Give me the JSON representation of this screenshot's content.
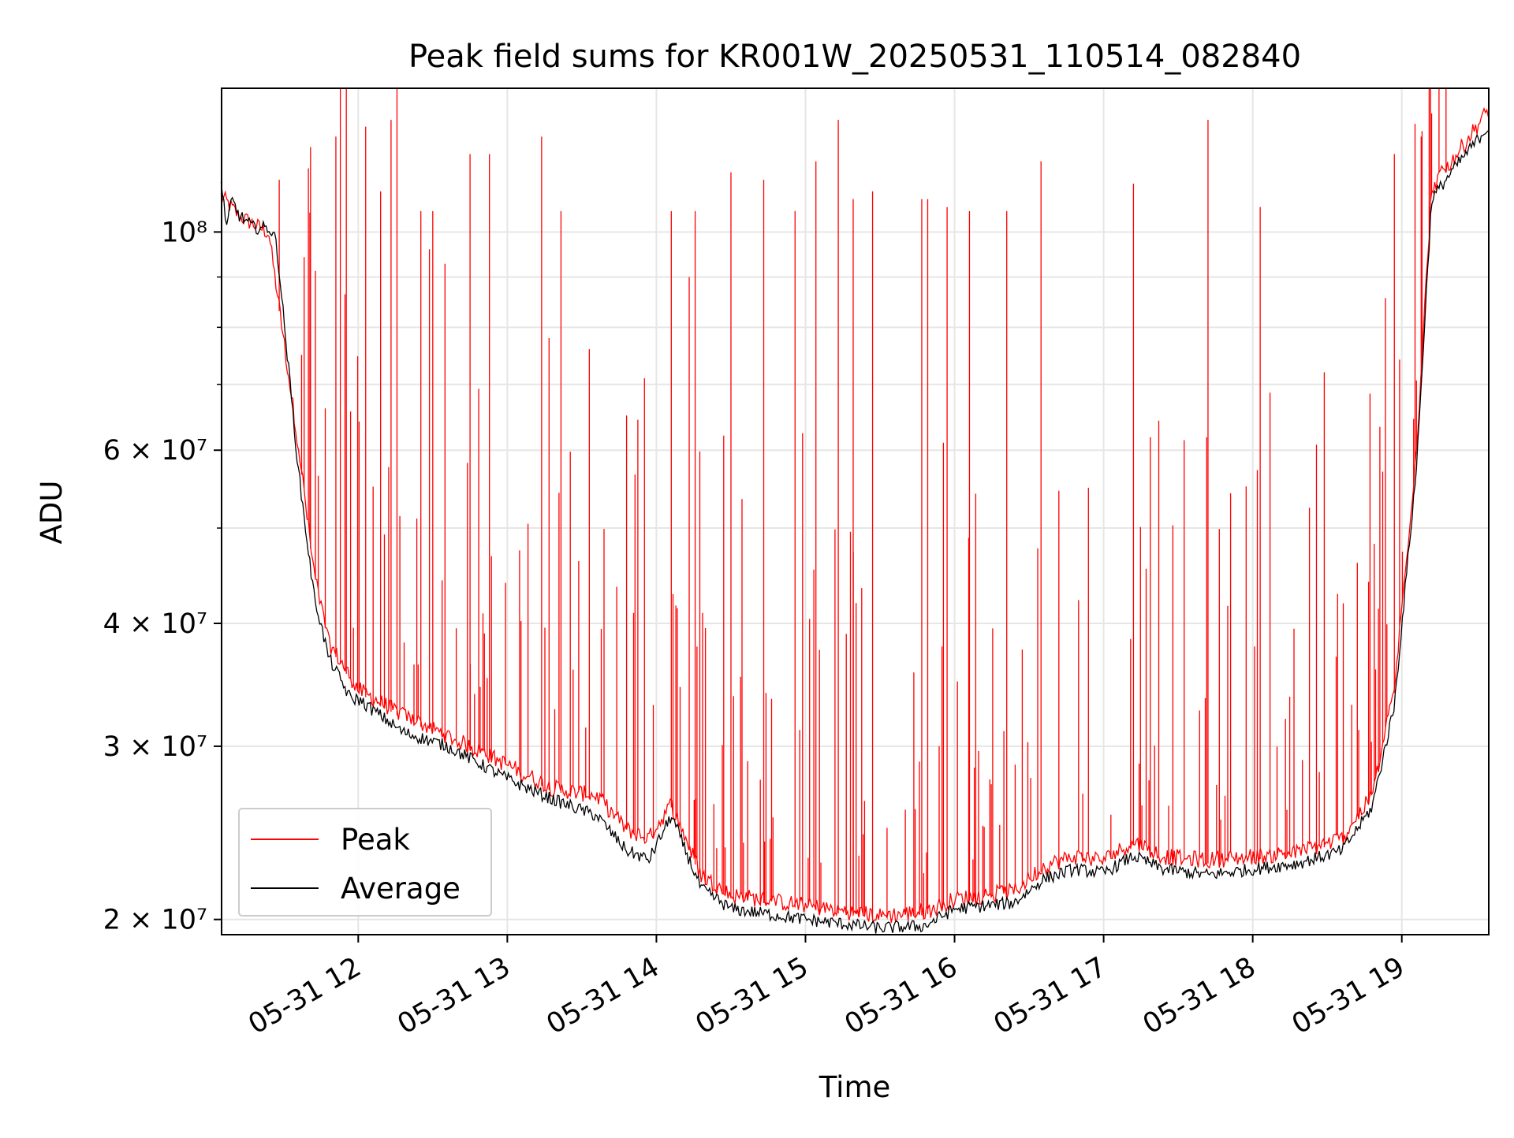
{
  "chart_data": {
    "type": "line",
    "title": "Peak field sums for KR001W_20250531_110514_082840",
    "xlabel": "Time",
    "ylabel": "ADU",
    "yscale": "log",
    "xlim": [
      "2025-05-31 11:05",
      "2025-05-31 19:35"
    ],
    "ylim": [
      19300000,
      140000000
    ],
    "x_ticks": [
      "05-31 12",
      "05-31 13",
      "05-31 14",
      "05-31 15",
      "05-31 16",
      "05-31 17",
      "05-31 18",
      "05-31 19"
    ],
    "x_tick_hours": [
      12,
      13,
      14,
      15,
      16,
      17,
      18,
      19
    ],
    "y_major_ticks": [
      {
        "value": 20000000,
        "label": "2 × 10⁷"
      },
      {
        "value": 30000000,
        "label": "3 × 10⁷"
      },
      {
        "value": 40000000,
        "label": "4 × 10⁷"
      },
      {
        "value": 60000000,
        "label": "6 × 10⁷"
      },
      {
        "value": 100000000,
        "label": "10⁸"
      }
    ],
    "y_minor_ticks": [
      50000000,
      70000000,
      80000000,
      90000000
    ],
    "grid": true,
    "legend_position": "lower-left",
    "series": [
      {
        "name": "Peak",
        "color": "#ff0000",
        "baseline": {
          "x_hours": [
            11.08,
            11.2,
            11.4,
            11.6,
            11.7,
            11.8,
            12.0,
            12.3,
            12.6,
            13.0,
            13.3,
            13.6,
            13.8,
            13.95,
            14.1,
            14.3,
            14.5,
            15.0,
            15.5,
            15.8,
            16.0,
            16.4,
            16.6,
            16.8,
            17.0,
            17.2,
            17.4,
            17.7,
            18.0,
            18.3,
            18.6,
            18.8,
            18.95,
            19.1,
            19.2,
            19.35,
            19.58
          ],
          "adu": [
            108000000,
            103000000,
            99000000,
            60000000,
            45000000,
            38000000,
            34000000,
            32000000,
            30500000,
            28500000,
            27000000,
            26500000,
            24500000,
            24000000,
            26000000,
            22000000,
            21000000,
            20500000,
            20000000,
            20200000,
            20800000,
            21200000,
            22500000,
            23000000,
            22800000,
            23800000,
            23000000,
            22800000,
            23000000,
            23200000,
            24000000,
            26500000,
            34000000,
            60000000,
            110000000,
            118000000,
            132000000
          ]
        },
        "spikes": [
          {
            "t": 11.47,
            "adu": 113000000
          },
          {
            "t": 11.62,
            "adu": 75000000
          },
          {
            "t": 11.68,
            "adu": 122000000
          },
          {
            "t": 11.85,
            "adu": 125000000
          },
          {
            "t": 11.88,
            "adu": 150000000
          },
          {
            "t": 11.92,
            "adu": 150000000
          },
          {
            "t": 12.05,
            "adu": 128000000
          },
          {
            "t": 12.15,
            "adu": 110000000
          },
          {
            "t": 12.22,
            "adu": 130000000
          },
          {
            "t": 12.26,
            "adu": 140000000
          },
          {
            "t": 12.42,
            "adu": 105000000
          },
          {
            "t": 12.5,
            "adu": 105000000
          },
          {
            "t": 12.75,
            "adu": 120000000
          },
          {
            "t": 12.88,
            "adu": 120000000
          },
          {
            "t": 13.23,
            "adu": 125000000
          },
          {
            "t": 13.36,
            "adu": 105000000
          },
          {
            "t": 13.28,
            "adu": 78000000
          },
          {
            "t": 13.55,
            "adu": 76000000
          },
          {
            "t": 13.92,
            "adu": 71000000
          },
          {
            "t": 14.1,
            "adu": 105000000
          },
          {
            "t": 14.22,
            "adu": 90000000
          },
          {
            "t": 14.26,
            "adu": 105000000
          },
          {
            "t": 14.5,
            "adu": 115000000
          },
          {
            "t": 14.72,
            "adu": 113000000
          },
          {
            "t": 14.93,
            "adu": 105000000
          },
          {
            "t": 15.07,
            "adu": 118000000
          },
          {
            "t": 15.22,
            "adu": 130000000
          },
          {
            "t": 15.32,
            "adu": 108000000
          },
          {
            "t": 15.45,
            "adu": 110000000
          },
          {
            "t": 15.82,
            "adu": 108000000
          },
          {
            "t": 15.78,
            "adu": 108000000
          },
          {
            "t": 15.95,
            "adu": 106000000
          },
          {
            "t": 16.1,
            "adu": 105000000
          },
          {
            "t": 16.35,
            "adu": 105000000
          },
          {
            "t": 16.58,
            "adu": 118000000
          },
          {
            "t": 17.2,
            "adu": 112000000
          },
          {
            "t": 17.7,
            "adu": 130000000
          },
          {
            "t": 18.05,
            "adu": 106000000
          },
          {
            "t": 18.48,
            "adu": 72000000
          },
          {
            "t": 18.95,
            "adu": 120000000
          },
          {
            "t": 19.13,
            "adu": 125000000
          },
          {
            "t": 19.2,
            "adu": 132000000
          }
        ]
      },
      {
        "name": "Average",
        "color": "#000000",
        "baseline": {
          "x_hours": [
            11.08,
            11.12,
            11.15,
            11.2,
            11.3,
            11.4,
            11.45,
            11.6,
            11.7,
            11.8,
            11.95,
            12.0,
            12.3,
            12.6,
            13.0,
            13.3,
            13.6,
            13.8,
            13.95,
            14.1,
            14.3,
            14.5,
            15.0,
            15.5,
            15.8,
            16.0,
            16.4,
            16.6,
            16.8,
            17.0,
            17.2,
            17.4,
            17.7,
            18.0,
            18.3,
            18.6,
            18.8,
            18.95,
            19.1,
            19.2,
            19.35,
            19.58
          ],
          "adu": [
            112000000,
            101000000,
            108000000,
            104000000,
            101000000,
            101000000,
            98000000,
            57000000,
            43000000,
            37000000,
            33500000,
            33500000,
            31000000,
            30000000,
            27800000,
            26500000,
            25500000,
            23500000,
            23000000,
            25500000,
            21500000,
            20500000,
            20000000,
            19600000,
            19700000,
            20500000,
            20800000,
            22000000,
            22500000,
            22300000,
            23200000,
            22500000,
            22200000,
            22500000,
            22800000,
            23500000,
            26000000,
            33000000,
            58000000,
            108000000,
            116000000,
            128000000
          ]
        }
      }
    ]
  }
}
